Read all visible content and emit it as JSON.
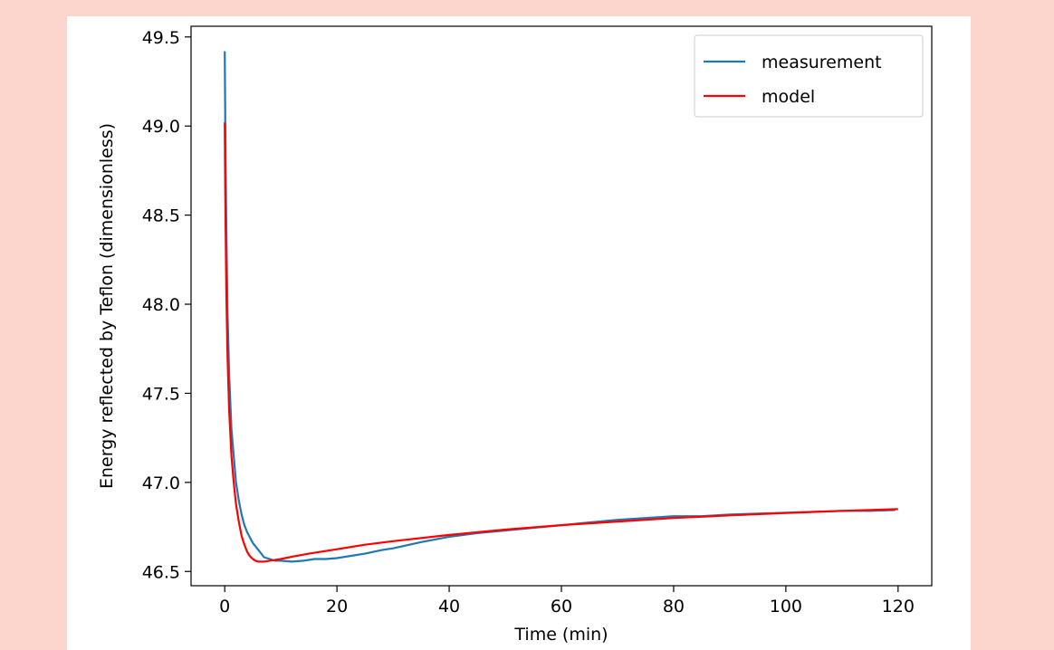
{
  "chart_data": {
    "type": "line",
    "xlabel": "Time (min)",
    "ylabel": "Energy reflected by Teflon (dimensionless)",
    "xlim": [
      -6,
      126
    ],
    "ylim": [
      46.42,
      49.56
    ],
    "xticks": [
      0,
      20,
      40,
      60,
      80,
      100,
      120
    ],
    "yticks": [
      46.5,
      47.0,
      47.5,
      48.0,
      48.5,
      49.0,
      49.5
    ],
    "xtick_labels": [
      "0",
      "20",
      "40",
      "60",
      "80",
      "100",
      "120"
    ],
    "ytick_labels": [
      "46.5",
      "47.0",
      "47.5",
      "48.0",
      "48.5",
      "49.0",
      "49.5"
    ],
    "grid": false,
    "legend_position": "top-right",
    "colors": {
      "measurement": "#1f77b4",
      "model": "#ff0000"
    },
    "series": [
      {
        "name": "measurement",
        "color": "#1f77b4",
        "x": [
          0,
          0.1,
          0.3,
          0.5,
          0.8,
          1.2,
          1.6,
          2,
          2.5,
          3,
          3.5,
          4,
          5,
          6,
          7,
          8,
          9,
          10,
          12,
          14,
          16,
          18,
          20,
          22,
          25,
          28,
          30,
          35,
          40,
          45,
          50,
          55,
          60,
          65,
          70,
          75,
          80,
          85,
          90,
          95,
          100,
          105,
          110,
          115,
          119.5
        ],
        "y": [
          49.42,
          49.0,
          48.4,
          47.95,
          47.6,
          47.3,
          47.15,
          47.0,
          46.9,
          46.82,
          46.76,
          46.72,
          46.66,
          46.62,
          46.58,
          46.57,
          46.56,
          46.56,
          46.555,
          46.56,
          46.57,
          46.57,
          46.575,
          46.585,
          46.6,
          46.62,
          46.63,
          46.665,
          46.695,
          46.715,
          46.73,
          46.745,
          46.76,
          46.775,
          46.79,
          46.8,
          46.81,
          46.81,
          46.82,
          46.825,
          46.83,
          46.835,
          46.84,
          46.84,
          46.845
        ]
      },
      {
        "name": "model",
        "color": "#ff0000",
        "x": [
          0,
          0.1,
          0.3,
          0.5,
          0.8,
          1.2,
          1.6,
          2,
          2.5,
          3,
          3.5,
          4,
          4.5,
          5,
          5.5,
          6,
          7,
          8,
          10,
          12,
          15,
          20,
          25,
          30,
          40,
          50,
          60,
          70,
          80,
          90,
          100,
          110,
          120
        ],
        "y": [
          49.02,
          48.6,
          48.05,
          47.7,
          47.4,
          47.15,
          47.0,
          46.88,
          46.78,
          46.7,
          46.65,
          46.61,
          46.585,
          46.57,
          46.56,
          46.555,
          46.555,
          46.56,
          46.57,
          46.583,
          46.6,
          46.625,
          46.65,
          46.67,
          46.705,
          46.735,
          46.76,
          46.78,
          46.8,
          46.815,
          46.828,
          46.84,
          46.85
        ]
      }
    ]
  }
}
